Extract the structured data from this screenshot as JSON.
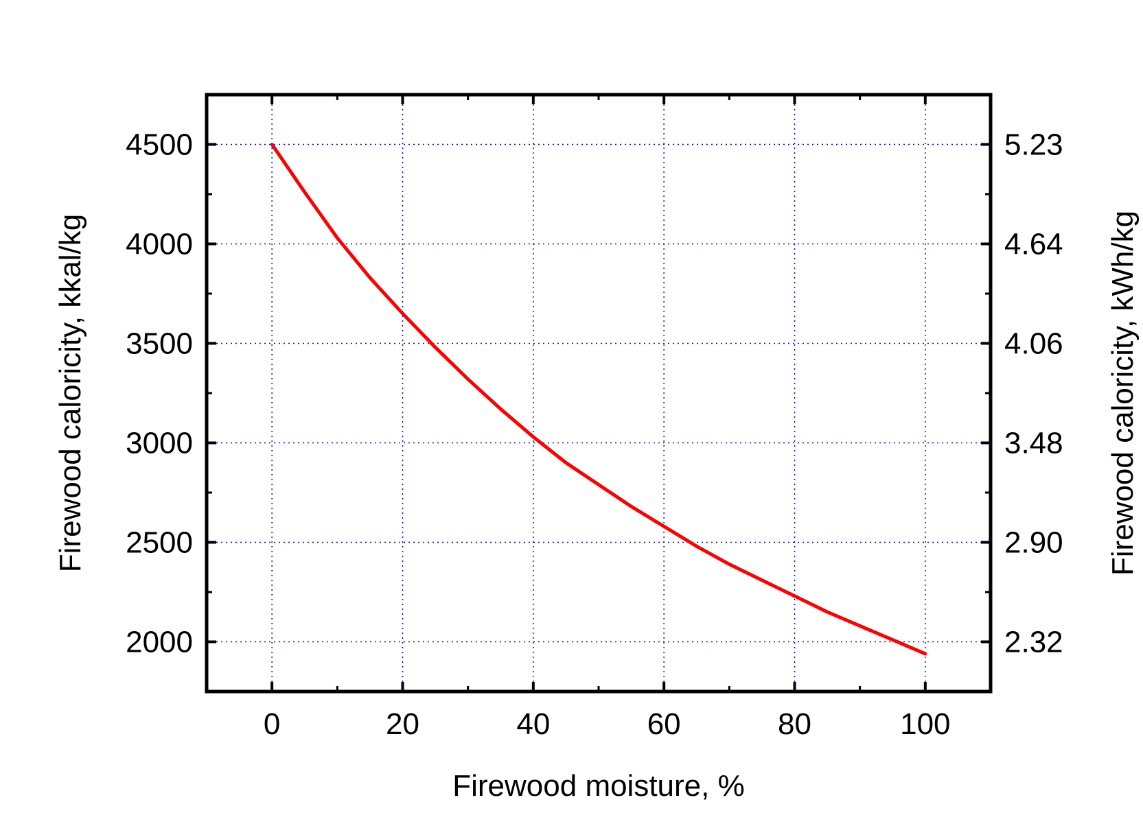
{
  "chart_data": {
    "type": "line",
    "title": "",
    "xlabel": "Firewood moisture, %",
    "ylabel": "Firewood caloricity, kkal/kg",
    "ylabel_right": "Firewood caloricity, kWh/kg",
    "xlim": [
      -10,
      110
    ],
    "ylim": [
      1750,
      4750
    ],
    "x_ticks": [
      "0",
      "20",
      "40",
      "60",
      "80",
      "100"
    ],
    "y_ticks": [
      "2000",
      "2500",
      "3000",
      "3500",
      "4000",
      "4500"
    ],
    "y_right_ticks": [
      "2.32",
      "2.90",
      "3.48",
      "4.06",
      "4.64",
      "5.23"
    ],
    "grid": true,
    "grid_color": "#0000ff",
    "line_color": "#ff0000",
    "series": [
      {
        "x": [
          0,
          5,
          10,
          15,
          20,
          25,
          30,
          35,
          40,
          45,
          50,
          55,
          60,
          65,
          70,
          75,
          80,
          85,
          90,
          95,
          100
        ],
        "values": [
          4500,
          4260,
          4030,
          3830,
          3650,
          3480,
          3320,
          3170,
          3030,
          2900,
          2790,
          2680,
          2580,
          2480,
          2390,
          2310,
          2230,
          2150,
          2080,
          2010,
          1940
        ]
      }
    ]
  }
}
